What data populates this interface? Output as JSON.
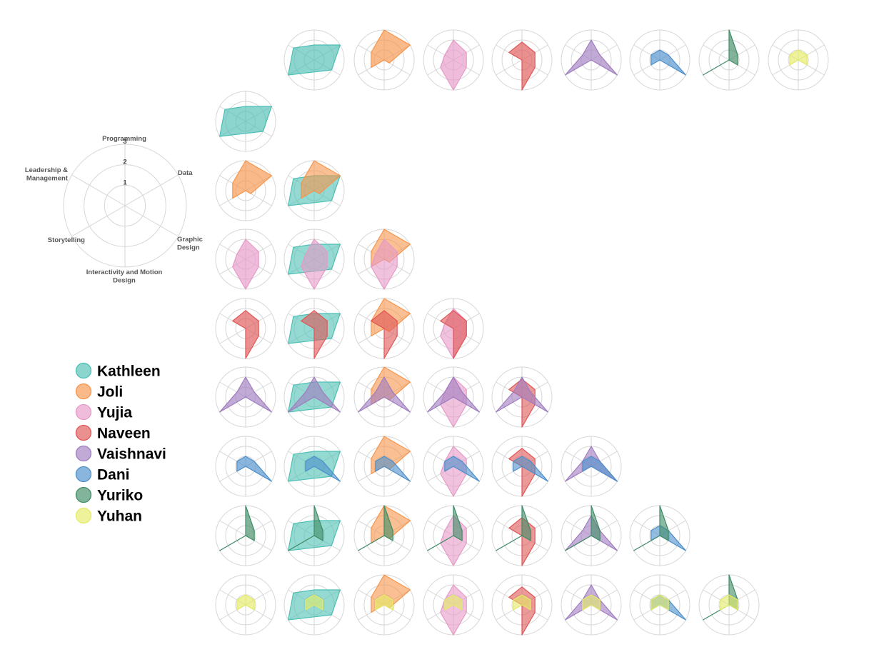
{
  "chart_data": {
    "type": "radar",
    "title": "",
    "axes": [
      "Programming",
      "Data",
      "Graphic Design",
      "Interactivity and Motion Design",
      "Storytelling",
      "Leadership & Management"
    ],
    "axis_label_lines": [
      [
        "Programming"
      ],
      [
        "Data"
      ],
      [
        "Graphic",
        "Design"
      ],
      [
        "Interactivity and Motion",
        "Design"
      ],
      [
        "Storytelling"
      ],
      [
        "Leadership &",
        "Management"
      ]
    ],
    "rlim": [
      0,
      3
    ],
    "ticks": [
      "1",
      "2",
      "3"
    ],
    "grid": true,
    "legend_position": "left",
    "layout": "pairwise lower-triangle matrix with individual profiles in top row and left column",
    "series": [
      {
        "name": "Kathleen",
        "color": "#4dbfb4",
        "values": [
          1.5,
          3,
          2,
          1.2,
          3,
          2.4
        ]
      },
      {
        "name": "Joli",
        "color": "#f7944a",
        "values": [
          3,
          3,
          0.6,
          0,
          1.5,
          1.5
        ]
      },
      {
        "name": "Yujia",
        "color": "#e699c8",
        "values": [
          2,
          1.5,
          1.5,
          3,
          1.5,
          1
        ]
      },
      {
        "name": "Naveen",
        "color": "#e05555",
        "values": [
          1.8,
          1.5,
          1.5,
          3,
          0,
          1.5
        ]
      },
      {
        "name": "Vaishnavi",
        "color": "#a07cc0",
        "values": [
          2,
          1,
          3,
          0,
          3,
          1
        ]
      },
      {
        "name": "Dani",
        "color": "#4b8fcc",
        "values": [
          1,
          1,
          3,
          0,
          1,
          1
        ]
      },
      {
        "name": "Yuriko",
        "color": "#3f8c66",
        "values": [
          3,
          1,
          1,
          0,
          3,
          0
        ]
      },
      {
        "name": "Yuhan",
        "color": "#e3eb66",
        "values": [
          1,
          1,
          1,
          0,
          1,
          1
        ]
      }
    ]
  }
}
